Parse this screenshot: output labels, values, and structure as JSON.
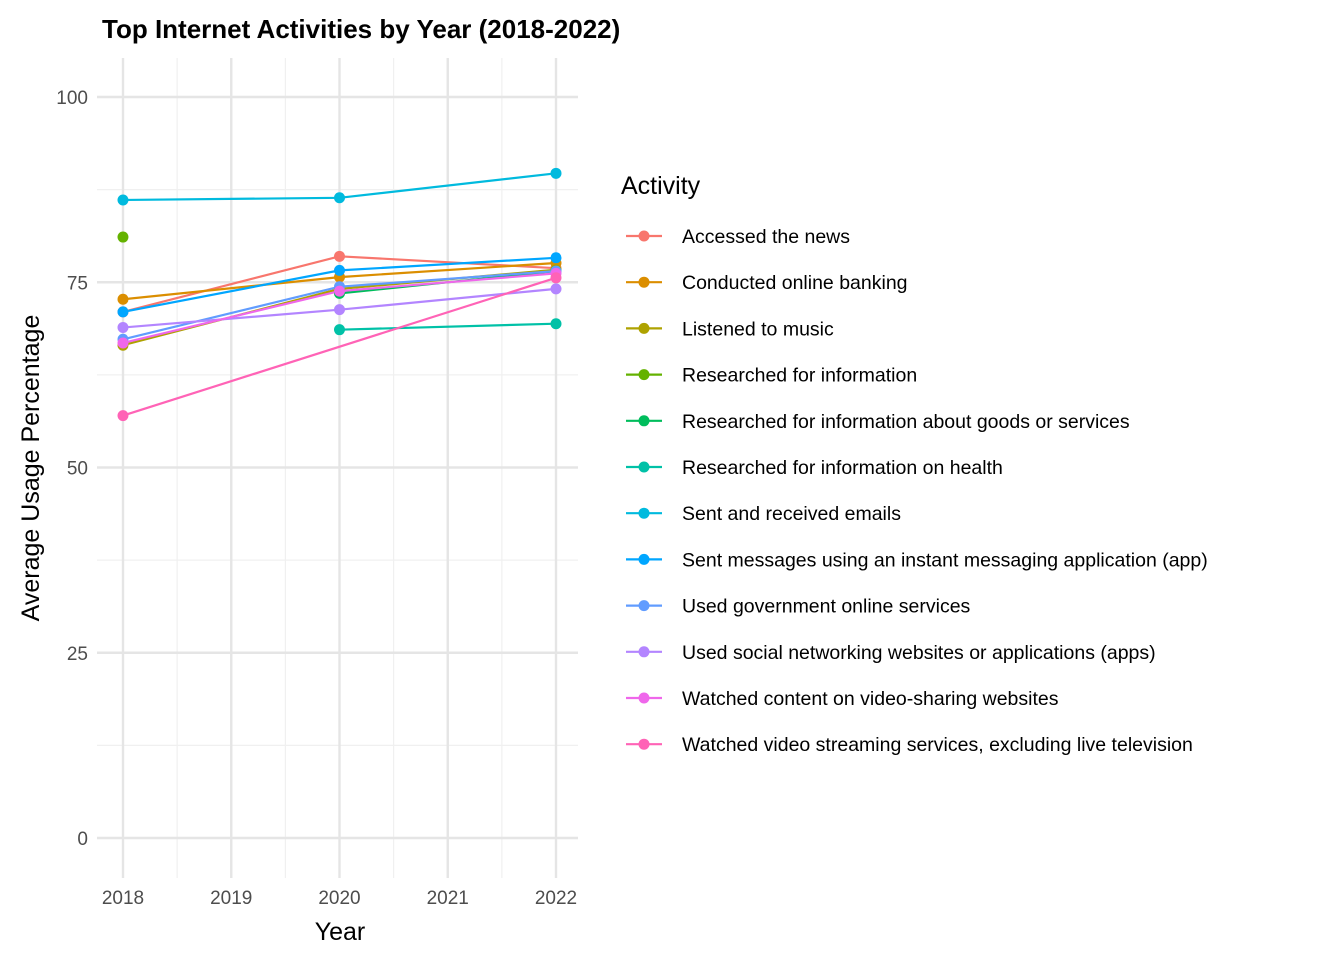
{
  "chart_data": {
    "type": "line",
    "title": "Top Internet Activities by Year (2018-2022)",
    "xlabel": "Year",
    "ylabel": "Average Usage Percentage",
    "x_ticks": [
      "2018",
      "2019",
      "2020",
      "2021",
      "2022"
    ],
    "y_ticks": [
      "0",
      "25",
      "50",
      "75",
      "100"
    ],
    "xlim": [
      2017.97,
      2022.1
    ],
    "ylim": [
      -4,
      104
    ],
    "grid": true,
    "legend": {
      "title": "Activity",
      "position": "right"
    },
    "series": [
      {
        "name": "Accessed the news",
        "color": "#F8766D",
        "points": [
          [
            2018,
            71.0
          ],
          [
            2020,
            78.5
          ],
          [
            2022,
            76.9
          ]
        ]
      },
      {
        "name": "Conducted online banking",
        "color": "#DB8E00",
        "points": [
          [
            2018,
            72.7
          ],
          [
            2020,
            75.7
          ],
          [
            2022,
            77.6
          ]
        ]
      },
      {
        "name": "Listened to music",
        "color": "#AEA200",
        "points": [
          [
            2018,
            66.5
          ],
          [
            2020,
            74.1
          ],
          [
            2022,
            76.7
          ]
        ]
      },
      {
        "name": "Researched for information",
        "color": "#64B200",
        "points": [
          [
            2018,
            81.1
          ]
        ]
      },
      {
        "name": "Researched for information about goods or services",
        "color": "#00BD5C",
        "points": [
          [
            2020,
            73.5
          ],
          [
            2022,
            76.5
          ]
        ]
      },
      {
        "name": "Researched for information on health",
        "color": "#00C1A7",
        "points": [
          [
            2020,
            68.6
          ],
          [
            2022,
            69.4
          ]
        ]
      },
      {
        "name": "Sent and received emails",
        "color": "#00BADE",
        "points": [
          [
            2018,
            86.1
          ],
          [
            2020,
            86.4
          ],
          [
            2022,
            89.7
          ]
        ]
      },
      {
        "name": "Sent messages using an instant messaging application (app)",
        "color": "#00A6FF",
        "points": [
          [
            2018,
            71.0
          ],
          [
            2020,
            76.6
          ],
          [
            2022,
            78.3
          ]
        ]
      },
      {
        "name": "Used government online services",
        "color": "#619CFF",
        "points": [
          [
            2018,
            67.3
          ],
          [
            2020,
            74.4
          ],
          [
            2022,
            76.5
          ]
        ]
      },
      {
        "name": "Used social networking websites or applications (apps)",
        "color": "#B385FF",
        "points": [
          [
            2018,
            68.9
          ],
          [
            2020,
            71.3
          ],
          [
            2022,
            74.1
          ]
        ]
      },
      {
        "name": "Watched content on video-sharing websites",
        "color": "#EF67EB",
        "points": [
          [
            2018,
            66.8
          ],
          [
            2020,
            73.8
          ],
          [
            2022,
            76.2
          ]
        ]
      },
      {
        "name": "Watched video streaming services, excluding live television",
        "color": "#FF63B6",
        "points": [
          [
            2018,
            57.0
          ],
          [
            2022,
            75.6
          ]
        ]
      }
    ]
  }
}
